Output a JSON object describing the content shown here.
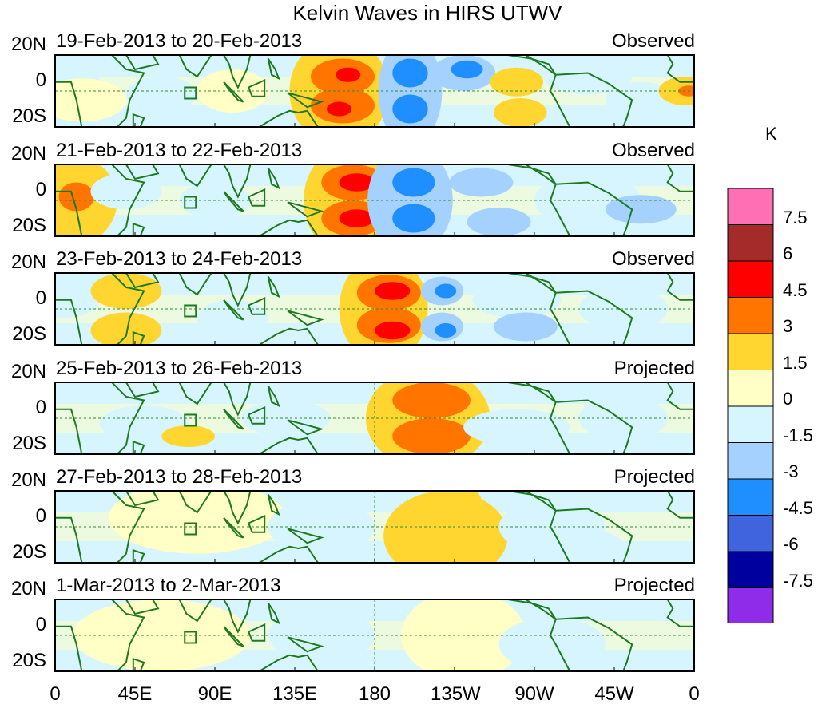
{
  "title": "Kelvin Waves in HIRS UTWV",
  "lat_labels": [
    "20N",
    "0",
    "20S"
  ],
  "lon_labels": [
    "0",
    "45E",
    "90E",
    "135E",
    "180",
    "135W",
    "90W",
    "45W",
    "0"
  ],
  "colorbar": {
    "unit": "K",
    "labels": [
      "7.5",
      "6",
      "4.5",
      "3",
      "1.5",
      "0",
      "-1.5",
      "-3",
      "-4.5",
      "-6",
      "-7.5"
    ],
    "colors": [
      "#ff6fb4",
      "#a52a2a",
      "#ff0000",
      "#ff7500",
      "#ffd530",
      "#ffffc6",
      "#d6f5ff",
      "#a5d1ff",
      "#1f8fff",
      "#3f64dd",
      "#00009f",
      "#8e2cea"
    ]
  },
  "panels": [
    {
      "date": "19-Feb-2013 to 20-Feb-2013",
      "status": "Observed"
    },
    {
      "date": "21-Feb-2013 to 22-Feb-2013",
      "status": "Observed"
    },
    {
      "date": "23-Feb-2013 to 24-Feb-2013",
      "status": "Observed"
    },
    {
      "date": "25-Feb-2013 to 26-Feb-2013",
      "status": "Projected"
    },
    {
      "date": "27-Feb-2013 to 28-Feb-2013",
      "status": "Projected"
    },
    {
      "date": "1-Mar-2013 to 2-Mar-2013",
      "status": "Projected"
    }
  ]
}
